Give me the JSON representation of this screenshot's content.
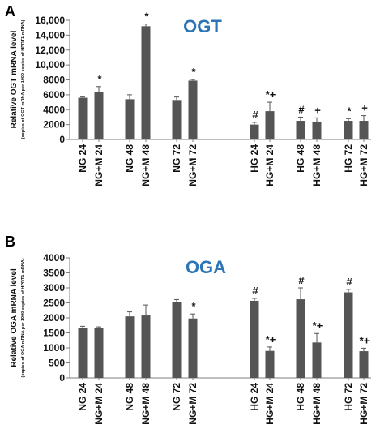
{
  "colors": {
    "bar": "#555555",
    "axis": "#7f7f7f",
    "title": "#2e75b6",
    "text": "#111111"
  },
  "chart_data": [
    {
      "panel_label": "A",
      "type": "bar",
      "title": "OGT",
      "ylabel": "Relative OGT mRNA level",
      "ylabel_sub": "(copies of OGT mRNA per 1000 copies of HPRT1 mRNA)",
      "ylim": [
        0,
        16000
      ],
      "yticks": [
        "0",
        "2000",
        "4000",
        "6000",
        "8000",
        "10,000",
        "12,000",
        "14,000",
        "16,000"
      ],
      "ytick_values": [
        0,
        2000,
        4000,
        6000,
        8000,
        10000,
        12000,
        14000,
        16000
      ],
      "categories": [
        "NG 24",
        "NG+M 24",
        "NG 48",
        "NG+M 48",
        "NG 72",
        "NG+M 72",
        "HG 24",
        "HG+M 24",
        "HG 48",
        "HG+M 48",
        "HG 72",
        "HG+M 72"
      ],
      "values": [
        5600,
        6400,
        5400,
        15200,
        5300,
        7900,
        2000,
        3800,
        2500,
        2400,
        2500,
        2500
      ],
      "errors": [
        100,
        700,
        600,
        300,
        400,
        150,
        300,
        1200,
        500,
        500,
        300,
        700
      ],
      "annotations": [
        "",
        "*",
        "",
        "*",
        "",
        "*",
        "#",
        "*+",
        "#",
        "+",
        "*",
        "+"
      ],
      "grid": false,
      "legend": "none"
    },
    {
      "panel_label": "B",
      "type": "bar",
      "title": "OGA",
      "ylabel": "Relative OGA mRNA level",
      "ylabel_sub": "(copies of OGA mRNA per 1000 copies of HPRT1 mRNA)",
      "ylim": [
        0,
        4000
      ],
      "yticks": [
        "0",
        "500",
        "1000",
        "1500",
        "2000",
        "2500",
        "3000",
        "3500",
        "4000"
      ],
      "ytick_values": [
        0,
        500,
        1000,
        1500,
        2000,
        2500,
        3000,
        3500,
        4000
      ],
      "categories": [
        "NG 24",
        "NG+M 24",
        "NG 48",
        "NG+M 48",
        "NG 72",
        "NG+M 72",
        "HG 24",
        "HG+M 24",
        "HG 48",
        "HG+M 48",
        "HG 72",
        "HG+M 72"
      ],
      "values": [
        1650,
        1670,
        2050,
        2080,
        2530,
        1980,
        2570,
        900,
        2620,
        1180,
        2850,
        890
      ],
      "errors": [
        70,
        30,
        150,
        350,
        80,
        150,
        80,
        130,
        380,
        300,
        100,
        100
      ],
      "annotations": [
        "",
        "",
        "",
        "",
        "",
        "*",
        "#",
        "*+",
        "#",
        "*+",
        "#",
        "*+"
      ],
      "grid": false,
      "legend": "none"
    }
  ]
}
